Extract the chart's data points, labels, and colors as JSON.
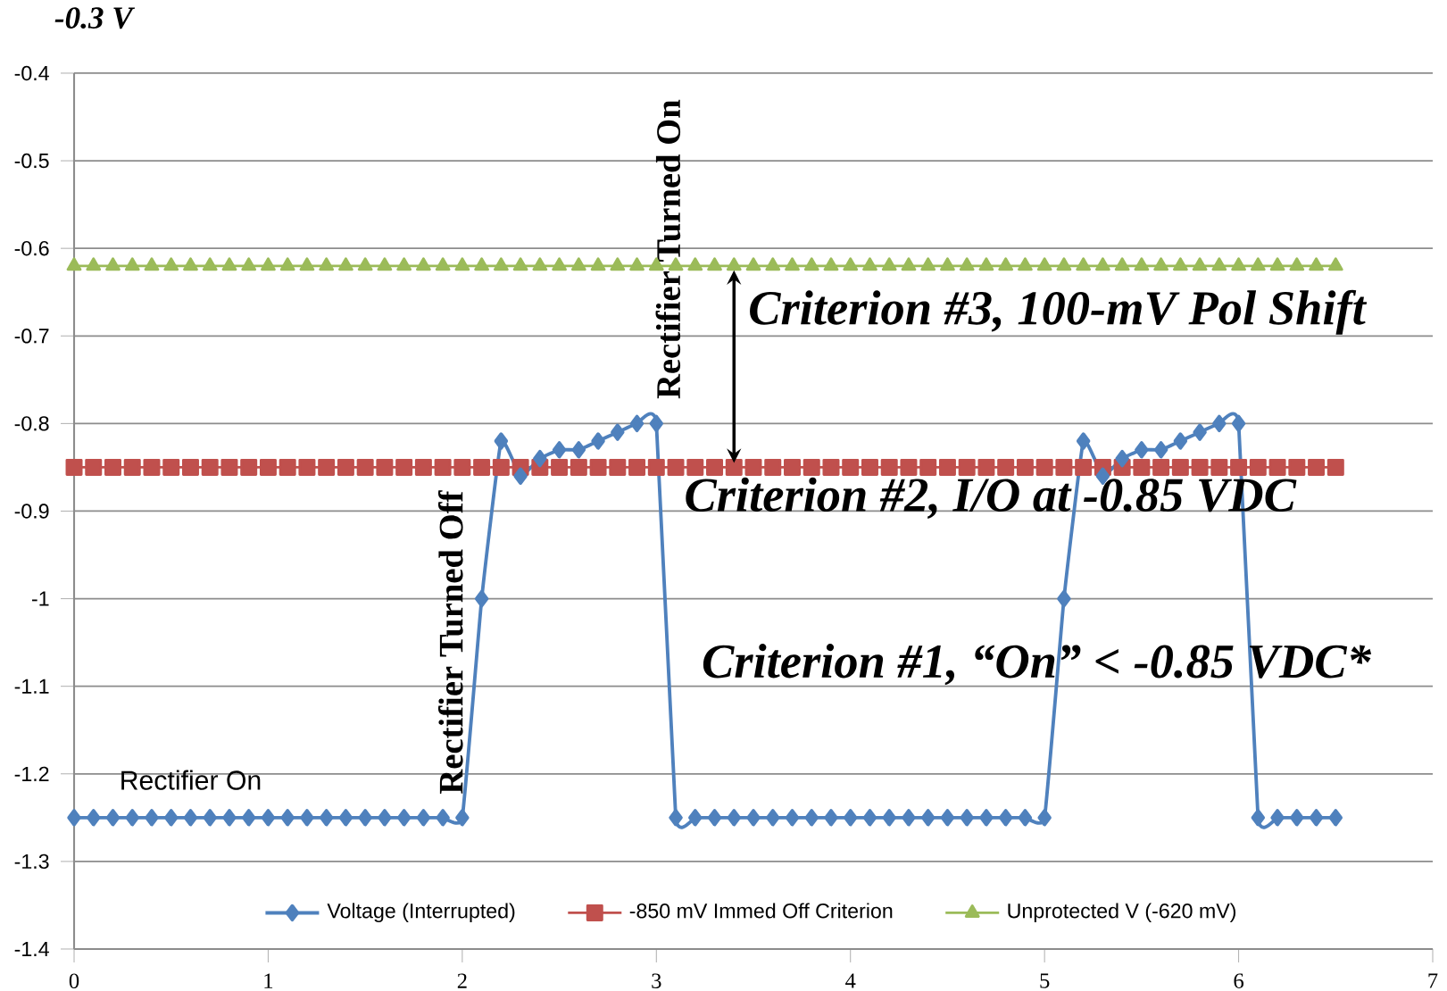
{
  "chart_data": {
    "type": "line",
    "x": [
      0,
      0.1,
      0.2,
      0.3,
      0.4,
      0.5,
      0.6,
      0.7,
      0.8,
      0.9,
      1.0,
      1.1,
      1.2,
      1.3,
      1.4,
      1.5,
      1.6,
      1.7,
      1.8,
      1.9,
      2.0,
      2.1,
      2.2,
      2.3,
      2.4,
      2.5,
      2.6,
      2.7,
      2.8,
      2.9,
      3.0,
      3.1,
      3.2,
      3.3,
      3.4,
      3.5,
      3.6,
      3.7,
      3.8,
      3.9,
      4.0,
      4.1,
      4.2,
      4.3,
      4.4,
      4.5,
      4.6,
      4.7,
      4.8,
      4.9,
      5.0,
      5.1,
      5.2,
      5.3,
      5.4,
      5.5,
      5.6,
      5.7,
      5.8,
      5.9,
      6.0,
      6.1,
      6.2,
      6.3,
      6.4,
      6.5
    ],
    "series": [
      {
        "name": "Voltage (Interrupted)",
        "color": "#4f81bd",
        "marker": "diamond",
        "values": [
          -1.25,
          -1.25,
          -1.25,
          -1.25,
          -1.25,
          -1.25,
          -1.25,
          -1.25,
          -1.25,
          -1.25,
          -1.25,
          -1.25,
          -1.25,
          -1.25,
          -1.25,
          -1.25,
          -1.25,
          -1.25,
          -1.25,
          -1.25,
          -1.25,
          -1.0,
          -0.82,
          -0.86,
          -0.84,
          -0.83,
          -0.83,
          -0.82,
          -0.81,
          -0.8,
          -0.8,
          -1.25,
          -1.25,
          -1.25,
          -1.25,
          -1.25,
          -1.25,
          -1.25,
          -1.25,
          -1.25,
          -1.25,
          -1.25,
          -1.25,
          -1.25,
          -1.25,
          -1.25,
          -1.25,
          -1.25,
          -1.25,
          -1.25,
          -1.25,
          -1.0,
          -0.82,
          -0.86,
          -0.84,
          -0.83,
          -0.83,
          -0.82,
          -0.81,
          -0.8,
          -0.8,
          -1.25,
          -1.25,
          -1.25,
          -1.25,
          -1.25
        ]
      },
      {
        "name": "-850 mV Immed Off Criterion",
        "color": "#c0504d",
        "marker": "square",
        "values": [
          -0.85,
          -0.85,
          -0.85,
          -0.85,
          -0.85,
          -0.85,
          -0.85,
          -0.85,
          -0.85,
          -0.85,
          -0.85,
          -0.85,
          -0.85,
          -0.85,
          -0.85,
          -0.85,
          -0.85,
          -0.85,
          -0.85,
          -0.85,
          -0.85,
          -0.85,
          -0.85,
          -0.85,
          -0.85,
          -0.85,
          -0.85,
          -0.85,
          -0.85,
          -0.85,
          -0.85,
          -0.85,
          -0.85,
          -0.85,
          -0.85,
          -0.85,
          -0.85,
          -0.85,
          -0.85,
          -0.85,
          -0.85,
          -0.85,
          -0.85,
          -0.85,
          -0.85,
          -0.85,
          -0.85,
          -0.85,
          -0.85,
          -0.85,
          -0.85,
          -0.85,
          -0.85,
          -0.85,
          -0.85,
          -0.85,
          -0.85,
          -0.85,
          -0.85,
          -0.85,
          -0.85,
          -0.85,
          -0.85,
          -0.85,
          -0.85,
          -0.85
        ]
      },
      {
        "name": "Unprotected V (-620 mV)",
        "color": "#9bbb59",
        "marker": "triangle",
        "values": [
          -0.62,
          -0.62,
          -0.62,
          -0.62,
          -0.62,
          -0.62,
          -0.62,
          -0.62,
          -0.62,
          -0.62,
          -0.62,
          -0.62,
          -0.62,
          -0.62,
          -0.62,
          -0.62,
          -0.62,
          -0.62,
          -0.62,
          -0.62,
          -0.62,
          -0.62,
          -0.62,
          -0.62,
          -0.62,
          -0.62,
          -0.62,
          -0.62,
          -0.62,
          -0.62,
          -0.62,
          -0.62,
          -0.62,
          -0.62,
          -0.62,
          -0.62,
          -0.62,
          -0.62,
          -0.62,
          -0.62,
          -0.62,
          -0.62,
          -0.62,
          -0.62,
          -0.62,
          -0.62,
          -0.62,
          -0.62,
          -0.62,
          -0.62,
          -0.62,
          -0.62,
          -0.62,
          -0.62,
          -0.62,
          -0.62,
          -0.62,
          -0.62,
          -0.62,
          -0.62,
          -0.62,
          -0.62,
          -0.62,
          -0.62,
          -0.62,
          -0.62
        ]
      }
    ],
    "xlim": [
      0,
      7
    ],
    "xticks": [
      0,
      1,
      2,
      3,
      4,
      5,
      6,
      7
    ],
    "ylim": [
      -1.4,
      -0.4
    ],
    "yticks": [
      -1.4,
      -1.3,
      -1.2,
      -1.1,
      -1,
      -0.9,
      -0.8,
      -0.7,
      -0.6,
      -0.5,
      -0.4
    ],
    "grid": "y",
    "legend": "bottom",
    "line_style": "solid",
    "annotations": [
      "-0.3 V",
      "Rectifier On",
      "Rectifier Turned Off",
      "Rectifier Turned On",
      "Criterion #3, 100-mV Pol Shift",
      "Criterion #2, I/O at -0.85 VDC",
      "Criterion #1, “On” < -0.85 VDC*"
    ]
  }
}
